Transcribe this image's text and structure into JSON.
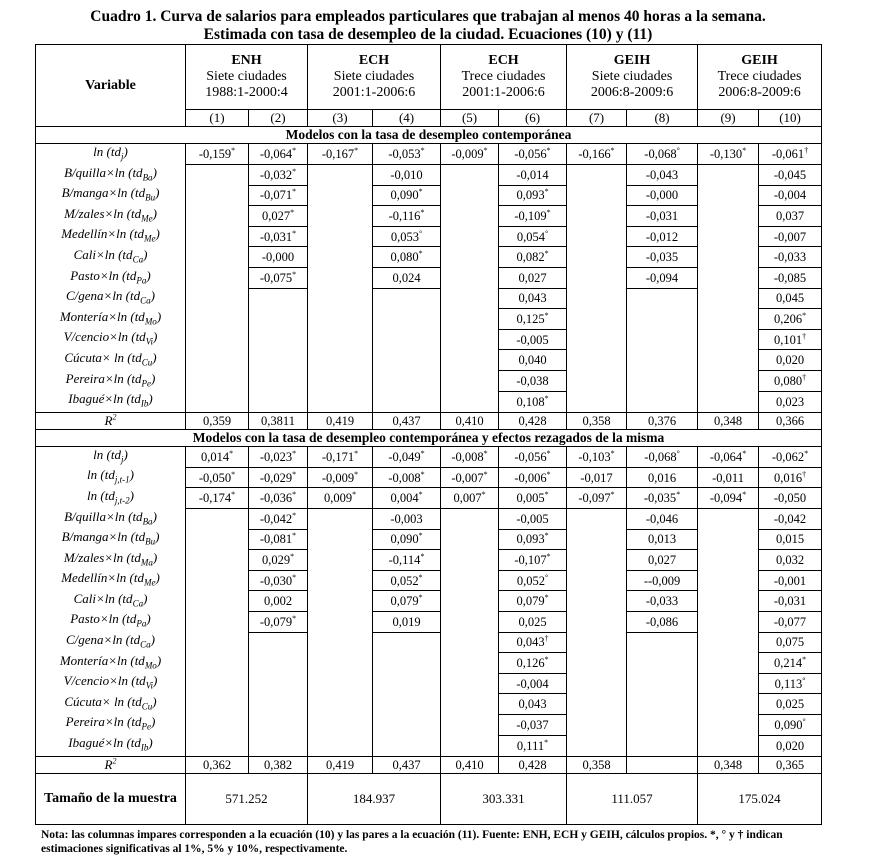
{
  "title_line1": "Cuadro 1. Curva de salarios para empleados particulares que trabajan al menos 40 horas a la semana.",
  "title_line2": "Estimada con tasa de desempleo de la ciudad. Ecuaciones (10) y (11)",
  "header": {
    "variable": "Variable",
    "groups": [
      {
        "survey": "ENH",
        "cities": "Siete ciudades",
        "period": "1988:1-2000:4"
      },
      {
        "survey": "ECH",
        "cities": "Siete ciudades",
        "period": "2001:1-2006:6"
      },
      {
        "survey": "ECH",
        "cities": "Trece ciudades",
        "period": "2001:1-2006:6"
      },
      {
        "survey": "GEIH",
        "cities": "Siete ciudades",
        "period": "2006:8-2009:6"
      },
      {
        "survey": "GEIH",
        "cities": "Trece ciudades",
        "period": "2006:8-2009:6"
      }
    ],
    "columns": [
      "(1)",
      "(2)",
      "(3)",
      "(4)",
      "(5)",
      "(6)",
      "(7)",
      "(8)",
      "(9)",
      "(10)"
    ]
  },
  "sections": [
    {
      "title": "Modelos con la tasa de desempleo contemporánea",
      "rows": [
        {
          "var": {
            "pre": "ln (td",
            "sub": "j",
            "post": ")"
          },
          "vals": [
            "-0,159*",
            "-0,064*",
            "-0,167*",
            "-0,053*",
            "-0,009*",
            "-0,056*",
            "-0,166*",
            "-0,068°",
            "-0,130*",
            "-0,061†"
          ]
        },
        {
          "var": {
            "pre": "B/quilla×ln (td",
            "sub": "Ba",
            "post": ")"
          },
          "vals": [
            "",
            "-0,032*",
            "",
            "-0,010",
            "",
            "-0,014",
            "",
            "-0,043",
            "",
            "-0,045"
          ]
        },
        {
          "var": {
            "pre": "B/manga×ln (td",
            "sub": "Bu",
            "post": ")"
          },
          "vals": [
            "",
            "-0,071*",
            "",
            "0,090*",
            "",
            "0,093*",
            "",
            "-0,000",
            "",
            "-0,004"
          ]
        },
        {
          "var": {
            "pre": "M/zales×ln (td",
            "sub": "Me",
            "post": ")"
          },
          "vals": [
            "",
            "0,027*",
            "",
            "-0,116*",
            "",
            "-0,109*",
            "",
            "-0,031",
            "",
            "0,037"
          ]
        },
        {
          "var": {
            "pre": "Medellín×ln (td",
            "sub": "Me",
            "post": ")"
          },
          "vals": [
            "",
            "-0,031*",
            "",
            "0,053°",
            "",
            "0,054°",
            "",
            "-0,012",
            "",
            "-0,007"
          ]
        },
        {
          "var": {
            "pre": "Cali×ln (td",
            "sub": "Ca",
            "post": ")"
          },
          "vals": [
            "",
            "-0,000",
            "",
            "0,080*",
            "",
            "0,082*",
            "",
            "-0,035",
            "",
            "-0,033"
          ]
        },
        {
          "var": {
            "pre": "Pasto×ln (td",
            "sub": "Pa",
            "post": ")"
          },
          "vals": [
            "",
            "-0,075*",
            "",
            "0,024",
            "",
            "0,027",
            "",
            "-0,094",
            "",
            "-0,085"
          ]
        },
        {
          "var": {
            "pre": "C/gena×ln (td",
            "sub": "Ca",
            "post": ")"
          },
          "vals": [
            "",
            "",
            "",
            "",
            "",
            "0,043",
            "",
            "",
            "",
            "0,045"
          ]
        },
        {
          "var": {
            "pre": "Montería×ln (td",
            "sub": "Mo",
            "post": ")"
          },
          "vals": [
            "",
            "",
            "",
            "",
            "",
            "0,125*",
            "",
            "",
            "",
            "0,206*"
          ]
        },
        {
          "var": {
            "pre": "V/cencio×ln (td",
            "sub": "Vi",
            "post": ")"
          },
          "vals": [
            "",
            "",
            "",
            "",
            "",
            "-0,005",
            "",
            "",
            "",
            "0,101†"
          ]
        },
        {
          "var": {
            "pre": "Cúcuta× ln (td",
            "sub": "Cu",
            "post": ")"
          },
          "vals": [
            "",
            "",
            "",
            "",
            "",
            "0,040",
            "",
            "",
            "",
            "0,020"
          ]
        },
        {
          "var": {
            "pre": "Pereira×ln (td",
            "sub": "Pe",
            "post": ")"
          },
          "vals": [
            "",
            "",
            "",
            "",
            "",
            "-0,038",
            "",
            "",
            "",
            "0,080†"
          ]
        },
        {
          "var": {
            "pre": "Ibagué×ln (td",
            "sub": "Ib",
            "post": ")"
          },
          "vals": [
            "",
            "",
            "",
            "",
            "",
            "0,108*",
            "",
            "",
            "",
            "0,023"
          ]
        }
      ],
      "r2": {
        "label": "R",
        "sup": "2",
        "vals": [
          "0,359",
          "0,3811",
          "0,419",
          "0,437",
          "0,410",
          "0,428",
          "0,358",
          "0,376",
          "0,348",
          "0,366"
        ]
      }
    },
    {
      "title": "Modelos con la tasa de desempleo contemporánea y efectos rezagados de la misma",
      "rows": [
        {
          "var": {
            "pre": "ln (td",
            "sub": "j",
            "post": ")"
          },
          "vals": [
            "0,014*",
            "-0,023*",
            "-0,171*",
            "-0,049*",
            "-0,008*",
            "-0,056*",
            "-0,103*",
            "-0,068°",
            "-0,064*",
            "-0,062*"
          ]
        },
        {
          "var": {
            "pre": "ln (td",
            "sub": "j,t-1",
            "post": ")"
          },
          "vals": [
            "-0,050*",
            "-0,029*",
            "-0,009*",
            "-0,008*",
            "-0,007*",
            "-0,006*",
            "-0,017",
            "0,016",
            "-0,011",
            "0,016†"
          ]
        },
        {
          "var": {
            "pre": "ln (td",
            "sub": "j,t-2",
            "post": ")"
          },
          "vals": [
            "-0,174*",
            "-0,036*",
            "0,009*",
            "0,004*",
            "0,007*",
            "0,005*",
            "-0,097*",
            "-0,035*",
            "-0,094*",
            "-0,050"
          ]
        },
        {
          "var": {
            "pre": "B/quilla×ln (td",
            "sub": "Ba",
            "post": ")"
          },
          "vals": [
            "",
            "-0,042*",
            "",
            "-0,003",
            "",
            "-0,005",
            "",
            "-0,046",
            "",
            "-0,042"
          ]
        },
        {
          "var": {
            "pre": "B/manga×ln (td",
            "sub": "Bu",
            "post": ")"
          },
          "vals": [
            "",
            "-0,081*",
            "",
            "0,090*",
            "",
            "0,093*",
            "",
            "0,013",
            "",
            "0,015"
          ]
        },
        {
          "var": {
            "pre": "M/zales×ln (td",
            "sub": "Ma",
            "post": ")"
          },
          "vals": [
            "",
            "0,029*",
            "",
            "-0,114*",
            "",
            "-0,107*",
            "",
            "0,027",
            "",
            "0,032"
          ]
        },
        {
          "var": {
            "pre": "Medellín×ln (td",
            "sub": "Me",
            "post": ")"
          },
          "vals": [
            "",
            "-0,030*",
            "",
            "0,052*",
            "",
            "0,052°",
            "",
            "--0,009",
            "",
            "-0,001"
          ]
        },
        {
          "var": {
            "pre": "Cali×ln (td",
            "sub": "Ca",
            "post": ")"
          },
          "vals": [
            "",
            "0,002",
            "",
            "0,079*",
            "",
            "0,079*",
            "",
            "-0,033",
            "",
            "-0,031"
          ]
        },
        {
          "var": {
            "pre": "Pasto×ln (td",
            "sub": "Pa",
            "post": ")"
          },
          "vals": [
            "",
            "-0,079*",
            "",
            "0,019",
            "",
            "0,025",
            "",
            "-0,086",
            "",
            "-0,077"
          ]
        },
        {
          "var": {
            "pre": "C/gena×ln (td",
            "sub": "Ca",
            "post": ")"
          },
          "vals": [
            "",
            "",
            "",
            "",
            "",
            "0,043†",
            "",
            "",
            "",
            "0,075"
          ]
        },
        {
          "var": {
            "pre": "Montería×ln (td",
            "sub": "Mo",
            "post": ")"
          },
          "vals": [
            "",
            "",
            "",
            "",
            "",
            "0,126*",
            "",
            "",
            "",
            "0,214*"
          ]
        },
        {
          "var": {
            "pre": "V/cencio×ln (td",
            "sub": "Vi",
            "post": ")"
          },
          "vals": [
            "",
            "",
            "",
            "",
            "",
            "-0,004",
            "",
            "",
            "",
            "0,113°"
          ]
        },
        {
          "var": {
            "pre": "Cúcuta× ln (td",
            "sub": "Cu",
            "post": ")"
          },
          "vals": [
            "",
            "",
            "",
            "",
            "",
            "0,043",
            "",
            "",
            "",
            "0,025"
          ]
        },
        {
          "var": {
            "pre": "Pereira×ln (td",
            "sub": "Pe",
            "post": ")"
          },
          "vals": [
            "",
            "",
            "",
            "",
            "",
            "-0,037",
            "",
            "",
            "",
            "0,090°"
          ]
        },
        {
          "var": {
            "pre": "Ibagué×ln (td",
            "sub": "Ib",
            "post": ")"
          },
          "vals": [
            "",
            "",
            "",
            "",
            "",
            "0,111*",
            "",
            "",
            "",
            "0,020"
          ]
        }
      ],
      "r2": {
        "label": "R",
        "sup": "2",
        "vals": [
          "0,362",
          "0,382",
          "0,419",
          "0,437",
          "0,410",
          "0,428",
          "0,358",
          "",
          "0,348",
          "0,365"
        ]
      }
    }
  ],
  "sample": {
    "label": "Tamaño de la muestra",
    "vals": [
      "571.252",
      "184.937",
      "303.331",
      "111.057",
      "175.024"
    ]
  },
  "note": "Nota: las columnas impares corresponden a la ecuación (10) y las pares a la ecuación (11). Fuente: ENH, ECH y GEIH, cálculos propios. *, ° y † indican estimaciones significativas al 1%, 5% y 10%, respectivamente."
}
